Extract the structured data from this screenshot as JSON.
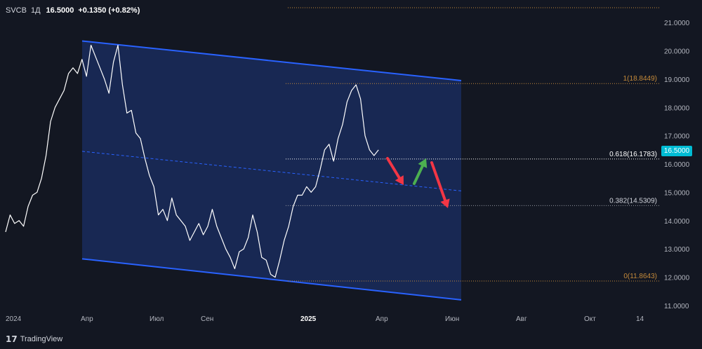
{
  "header": {
    "symbol": "SVCB",
    "timeframe": "1Д",
    "last": "16.5000",
    "change": "+0.1350 (+0.82%)"
  },
  "branding": {
    "name": "TradingView"
  },
  "price_badge": "16.5000",
  "colors": {
    "background": "#131722",
    "price_line": "#ffffff",
    "channel_line": "#2962ff",
    "channel_fill": "#1a2b5c",
    "fib_line": "#c58a3a",
    "arrow_down": "#f23645",
    "arrow_up": "#4caf50",
    "badge": "#00bcd4"
  },
  "chart_data": {
    "type": "line",
    "y_axis": {
      "ticks": [
        "21.0000",
        "20.0000",
        "19.0000",
        "18.0000",
        "17.0000",
        "16.0000",
        "15.0000",
        "14.0000",
        "13.0000",
        "12.0000",
        "11.0000"
      ],
      "range": [
        10.85,
        21.55
      ]
    },
    "x_axis": {
      "labels": [
        "2024",
        "Апр",
        "Июл",
        "Сен",
        "2025",
        "Апр",
        "Июн",
        "Авг",
        "Окт",
        "14"
      ],
      "bold_labels": [
        "2025"
      ]
    },
    "fib_levels": [
      {
        "label": "1(18.8449)",
        "value": 18.8449
      },
      {
        "label": "0.618(16.1783)",
        "value": 16.1783
      },
      {
        "label": "0.382(14.5309)",
        "value": 14.5309
      },
      {
        "label": "0(11.8643)",
        "value": 11.8643
      }
    ],
    "series": [
      {
        "values": [
          [
            0,
            13.6
          ],
          [
            0.02,
            14.2
          ],
          [
            0.04,
            13.9
          ],
          [
            0.06,
            14.0
          ],
          [
            0.08,
            13.8
          ],
          [
            0.1,
            14.5
          ],
          [
            0.12,
            14.9
          ],
          [
            0.14,
            15.0
          ],
          [
            0.16,
            15.5
          ],
          [
            0.18,
            16.3
          ],
          [
            0.2,
            17.5
          ],
          [
            0.22,
            18.0
          ],
          [
            0.24,
            18.3
          ],
          [
            0.26,
            18.6
          ],
          [
            0.28,
            19.2
          ],
          [
            0.3,
            19.4
          ],
          [
            0.32,
            19.2
          ],
          [
            0.34,
            19.7
          ],
          [
            0.36,
            19.1
          ],
          [
            0.38,
            20.2
          ],
          [
            0.4,
            19.8
          ],
          [
            0.42,
            19.4
          ],
          [
            0.44,
            19.0
          ],
          [
            0.46,
            18.5
          ],
          [
            0.48,
            19.6
          ],
          [
            0.5,
            20.2
          ],
          [
            0.52,
            18.8
          ],
          [
            0.54,
            17.8
          ],
          [
            0.56,
            17.9
          ],
          [
            0.58,
            17.1
          ],
          [
            0.6,
            16.9
          ],
          [
            0.62,
            16.2
          ],
          [
            0.64,
            15.6
          ],
          [
            0.66,
            15.2
          ],
          [
            0.68,
            14.2
          ],
          [
            0.7,
            14.4
          ],
          [
            0.72,
            14.0
          ],
          [
            0.74,
            14.8
          ],
          [
            0.76,
            14.2
          ],
          [
            0.78,
            14.0
          ],
          [
            0.8,
            13.8
          ],
          [
            0.82,
            13.3
          ],
          [
            0.84,
            13.6
          ],
          [
            0.86,
            13.9
          ],
          [
            0.88,
            13.5
          ],
          [
            0.9,
            13.8
          ],
          [
            0.92,
            14.4
          ],
          [
            0.94,
            13.8
          ],
          [
            0.96,
            13.4
          ],
          [
            0.98,
            13.0
          ],
          [
            1.0,
            12.7
          ],
          [
            1.02,
            12.3
          ],
          [
            1.04,
            12.9
          ],
          [
            1.06,
            13.0
          ],
          [
            1.08,
            13.4
          ],
          [
            1.1,
            14.2
          ],
          [
            1.12,
            13.6
          ],
          [
            1.14,
            12.7
          ],
          [
            1.16,
            12.6
          ],
          [
            1.18,
            12.1
          ],
          [
            1.2,
            12.0
          ],
          [
            1.22,
            12.6
          ],
          [
            1.24,
            13.3
          ],
          [
            1.26,
            13.8
          ],
          [
            1.28,
            14.5
          ],
          [
            1.3,
            14.9
          ],
          [
            1.32,
            14.9
          ],
          [
            1.34,
            15.2
          ],
          [
            1.36,
            15.0
          ],
          [
            1.38,
            15.2
          ],
          [
            1.4,
            15.8
          ],
          [
            1.42,
            16.5
          ],
          [
            1.44,
            16.7
          ],
          [
            1.46,
            16.1
          ],
          [
            1.48,
            16.9
          ],
          [
            1.5,
            17.4
          ],
          [
            1.52,
            18.2
          ],
          [
            1.54,
            18.6
          ],
          [
            1.56,
            18.8
          ],
          [
            1.58,
            18.3
          ],
          [
            1.6,
            17.0
          ],
          [
            1.62,
            16.5
          ],
          [
            1.64,
            16.3
          ],
          [
            1.66,
            16.5
          ]
        ]
      }
    ]
  }
}
